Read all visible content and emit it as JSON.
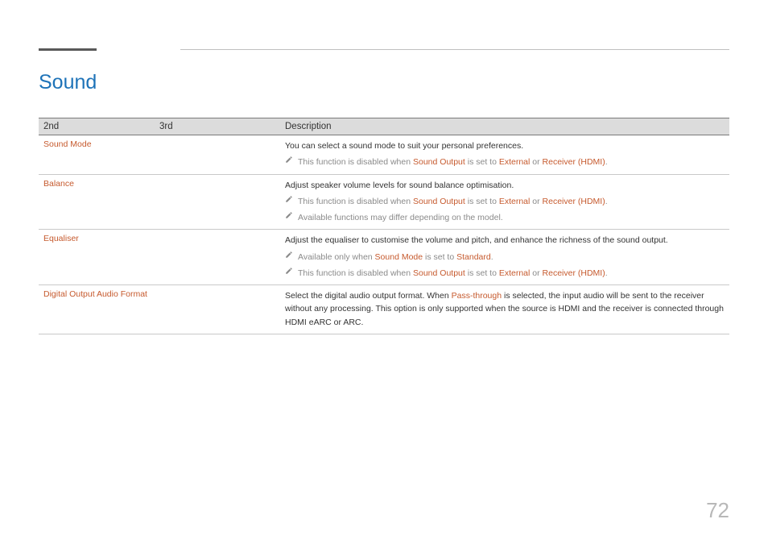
{
  "title": "Sound",
  "headers": {
    "c1": "2nd",
    "c2": "3rd",
    "c3": "Description"
  },
  "rows": [
    {
      "label": "Sound Mode",
      "main": "You can select a sound mode to suit your personal preferences.",
      "notes": [
        {
          "parts": [
            "This function is disabled when ",
            "Sound Output",
            " is set to ",
            "External",
            " or ",
            "Receiver (HDMI)",
            "."
          ]
        }
      ]
    },
    {
      "label": "Balance",
      "main": "Adjust speaker volume levels for sound balance optimisation.",
      "notes": [
        {
          "parts": [
            "This function is disabled when ",
            "Sound Output",
            " is set to ",
            "External",
            " or ",
            "Receiver (HDMI)",
            "."
          ]
        },
        {
          "parts": [
            "Available functions may differ depending on the model."
          ]
        }
      ]
    },
    {
      "label": "Equaliser",
      "main": "Adjust the equaliser to customise the volume and pitch, and enhance the richness of the sound output.",
      "notes": [
        {
          "parts": [
            "Available only when ",
            "Sound Mode",
            " is set to ",
            "Standard",
            "."
          ]
        },
        {
          "parts": [
            "This function is disabled when ",
            "Sound Output",
            " is set to ",
            "External",
            " or ",
            "Receiver (HDMI)",
            "."
          ]
        }
      ]
    },
    {
      "label": "Digital Output Audio Format",
      "mainParts": [
        "Select the digital audio output format. When ",
        "Pass-through",
        " is selected, the input audio will be sent to the receiver without any processing. This option is only supported when the source is HDMI and the receiver is connected through HDMI eARC or ARC."
      ],
      "notes": []
    }
  ],
  "colors": {
    "accent": "#c65a2e",
    "title": "#1e73b8",
    "noteText": "#8a8a8a",
    "pencil": "#8a8a8a"
  },
  "pageNumber": "72"
}
